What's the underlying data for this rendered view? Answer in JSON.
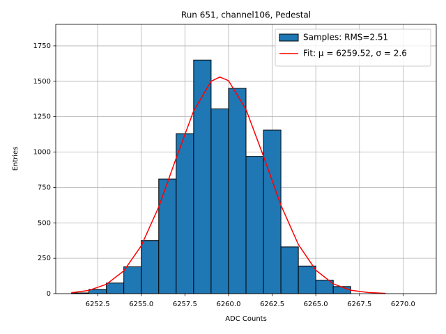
{
  "chart_data": {
    "type": "histogram",
    "title": "Run 651, channel106, Pedestal",
    "xlabel": "ADC Counts",
    "ylabel": "Entries",
    "name": "Samples: RMS=2.51",
    "color": "#1f77b4",
    "edgecolor": "#000000",
    "bins": [
      6251,
      6252,
      6253,
      6254,
      6255,
      6256,
      6257,
      6258,
      6259,
      6260,
      6261,
      6262,
      6263,
      6264,
      6265,
      6266,
      6267
    ],
    "values": [
      5,
      30,
      75,
      190,
      375,
      810,
      1130,
      1650,
      1305,
      1450,
      970,
      1155,
      330,
      195,
      95,
      50
    ],
    "fit": {
      "type": "line",
      "name": "Fit: μ = 6259.52, σ = 2.6",
      "color": "#ff0000",
      "x": [
        6251,
        6252,
        6253,
        6254,
        6255,
        6256,
        6257,
        6258,
        6259,
        6259.5,
        6260,
        6261,
        6262,
        6263,
        6264,
        6265,
        6266,
        6267,
        6268,
        6269
      ],
      "values": [
        7,
        23,
        66,
        161,
        338,
        612,
        957,
        1290,
        1500,
        1530,
        1504,
        1301,
        971,
        625,
        347,
        166,
        69,
        24,
        8,
        2
      ]
    },
    "xlim": [
      6250.1,
      6271.9
    ],
    "ylim": [
      0,
      1902
    ],
    "xticks": [
      6252.5,
      {
        "value": 6255,
        "label": "6255.0"
      },
      6257.5,
      {
        "value": 6260,
        "label": "6260.0"
      },
      6262.5,
      {
        "value": 6265,
        "label": "6265.0"
      },
      6267.5,
      {
        "value": 6270,
        "label": "6270.0"
      }
    ],
    "yticks": [
      0,
      250,
      500,
      750,
      1000,
      1250,
      1500,
      1750
    ],
    "grid": true,
    "legend": "upper right"
  }
}
